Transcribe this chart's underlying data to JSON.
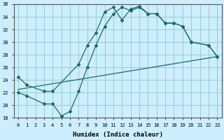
{
  "xlabel": "Humidex (Indice chaleur)",
  "bg_color": "#cceeff",
  "grid_color": "#99cccc",
  "line_color": "#1a6b6b",
  "xlim": [
    -0.5,
    23.5
  ],
  "ylim": [
    18,
    36
  ],
  "xticks": [
    0,
    1,
    2,
    3,
    4,
    5,
    6,
    7,
    8,
    9,
    10,
    11,
    12,
    13,
    14,
    15,
    16,
    17,
    18,
    19,
    20,
    21,
    22,
    23
  ],
  "yticks": [
    18,
    20,
    22,
    24,
    26,
    28,
    30,
    32,
    34,
    36
  ],
  "line1_x": [
    0,
    1,
    3,
    4,
    7,
    8,
    9,
    10,
    11,
    12,
    13,
    14,
    15,
    16,
    17,
    18,
    19,
    20,
    22,
    23
  ],
  "line1_y": [
    24.5,
    23.2,
    22.2,
    22.2,
    26.5,
    29.5,
    31.5,
    34.8,
    35.5,
    33.5,
    35.2,
    35.7,
    34.5,
    34.5,
    33.0,
    33.0,
    32.5,
    30.0,
    29.5,
    27.7
  ],
  "line2_x": [
    0,
    23
  ],
  "line2_y": [
    22.5,
    27.7
  ],
  "line3_x": [
    0,
    1,
    3,
    4,
    5,
    6,
    7,
    8,
    9,
    10,
    11,
    12,
    13,
    14,
    15,
    16,
    17,
    18,
    19,
    20,
    22,
    23
  ],
  "line3_y": [
    22.0,
    21.5,
    20.2,
    20.2,
    18.3,
    19.0,
    22.2,
    26.0,
    29.5,
    32.5,
    34.5,
    35.5,
    35.0,
    35.5,
    34.5,
    34.5,
    33.0,
    33.0,
    32.5,
    30.0,
    29.5,
    27.7
  ]
}
